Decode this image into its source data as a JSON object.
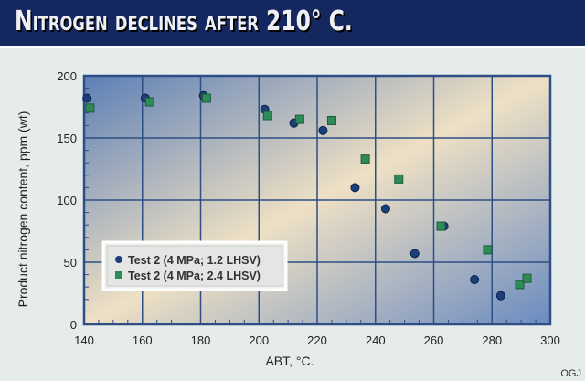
{
  "header": {
    "title": "Nitrogen declines after 210° C."
  },
  "credit": "OGJ",
  "chart_data": {
    "type": "scatter",
    "title": "Nitrogen declines after 210° C.",
    "xlabel": "ABT, °C.",
    "ylabel": "Product nitrogen content, ppm (wt)",
    "xlim": [
      140,
      300
    ],
    "ylim": [
      0,
      200
    ],
    "xticks": [
      "140",
      "160",
      "180",
      "200",
      "220",
      "240",
      "260",
      "280",
      "300"
    ],
    "yticks": [
      "0",
      "50",
      "100",
      "150",
      "200"
    ],
    "grid": true,
    "legend": "bottom-left",
    "series": [
      {
        "name": "Test 2 (4 MPa; 1.2 LHSV)",
        "marker": "circle",
        "color": "#1b3f7a",
        "points": [
          [
            141,
            182
          ],
          [
            161,
            182
          ],
          [
            181,
            184
          ],
          [
            202,
            173
          ],
          [
            212,
            162
          ],
          [
            222,
            156
          ],
          [
            233,
            110
          ],
          [
            243.5,
            93
          ],
          [
            253.5,
            57
          ],
          [
            263.5,
            79
          ],
          [
            274,
            36
          ],
          [
            283,
            23
          ]
        ]
      },
      {
        "name": "Test 2 (4 MPa; 2.4 LHSV)",
        "marker": "square",
        "color": "#2e8b57",
        "points": [
          [
            142,
            174
          ],
          [
            162.5,
            179
          ],
          [
            182,
            182
          ],
          [
            203,
            168
          ],
          [
            214,
            165
          ],
          [
            225,
            164
          ],
          [
            236.5,
            133
          ],
          [
            248,
            117
          ],
          [
            262.5,
            79
          ],
          [
            278.5,
            60
          ],
          [
            289.5,
            32
          ],
          [
            292,
            37
          ]
        ]
      }
    ]
  }
}
